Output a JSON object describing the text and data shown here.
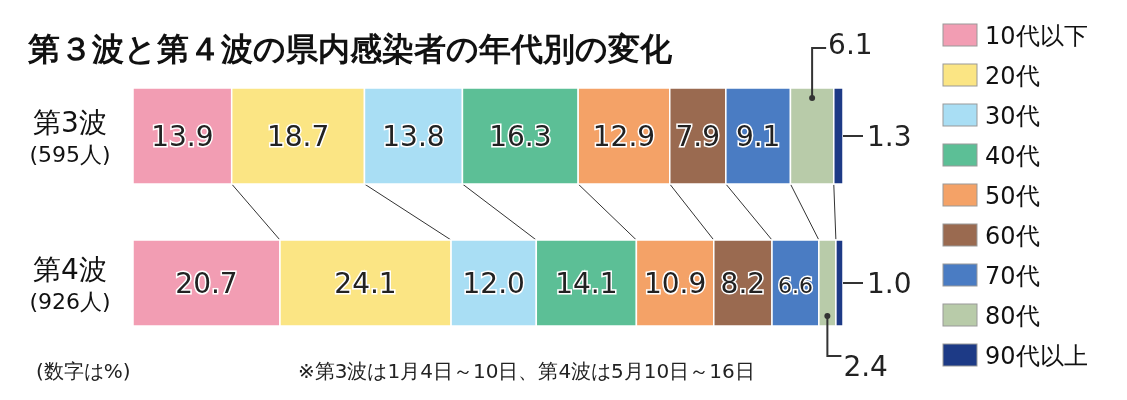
{
  "chart_data": {
    "type": "bar",
    "orientation": "horizontal",
    "stacked": true,
    "title": "第３波と第４波の県内感染者の年代別の変化",
    "categories": [
      "第3波 (595人)",
      "第4波 (926人)"
    ],
    "xlim": [
      0,
      100
    ],
    "series": [
      {
        "name": "10代以下",
        "color": "#f29db3",
        "values": [
          13.9,
          20.7
        ],
        "value_labels": [
          "13.9",
          "20.7"
        ]
      },
      {
        "name": "20代",
        "color": "#fbe584",
        "values": [
          18.7,
          24.1
        ],
        "value_labels": [
          "18.7",
          "24.1"
        ]
      },
      {
        "name": "30代",
        "color": "#a9def4",
        "values": [
          13.8,
          12.0
        ],
        "value_labels": [
          "13.8",
          "12.0"
        ]
      },
      {
        "name": "40代",
        "color": "#5cbf96",
        "values": [
          16.3,
          14.1
        ],
        "value_labels": [
          "16.3",
          "14.1"
        ]
      },
      {
        "name": "50代",
        "color": "#f4a267",
        "values": [
          12.9,
          10.9
        ],
        "value_labels": [
          "12.9",
          "10.9"
        ]
      },
      {
        "name": "60代",
        "color": "#9a6a50",
        "values": [
          7.9,
          8.2
        ],
        "value_labels": [
          "7.9",
          "8.2"
        ]
      },
      {
        "name": "70代",
        "color": "#4a7cc3",
        "values": [
          9.1,
          6.6
        ],
        "value_labels": [
          "9.1",
          "6.6"
        ]
      },
      {
        "name": "80代",
        "color": "#b8cba9",
        "values": [
          6.1,
          2.4
        ],
        "value_labels": [
          "6.1",
          "2.4"
        ]
      },
      {
        "name": "90代以上",
        "color": "#1d3a86",
        "values": [
          1.3,
          1.0
        ],
        "value_labels": [
          "1.3",
          "1.0"
        ]
      }
    ],
    "legend": "right",
    "annotations": [
      "(数字は%)",
      "※第3波は1月4日～10日、第4波は5月10日～16日"
    ]
  }
}
